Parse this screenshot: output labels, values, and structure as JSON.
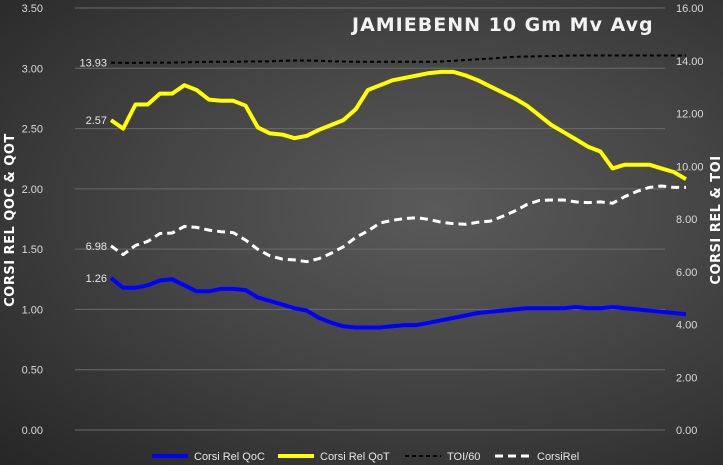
{
  "chart_data": {
    "type": "line",
    "title": "JAMIEBENN 10 Gm Mv Avg",
    "ylabel": "CORSI REL QOC & QOT",
    "y2label": "CORSI REL & TOI",
    "ylim": [
      0,
      3.5
    ],
    "y2lim": [
      0,
      16
    ],
    "yticks": [
      "0.00",
      "0.50",
      "1.00",
      "1.50",
      "2.00",
      "2.50",
      "3.00",
      "3.50"
    ],
    "y2ticks": [
      "0.00",
      "2.00",
      "4.00",
      "6.00",
      "8.00",
      "10.00",
      "12.00",
      "14.00",
      "16.00"
    ],
    "grid": true,
    "legend_position": "bottom",
    "x": [
      1,
      2,
      3,
      4,
      5,
      6,
      7,
      8,
      9,
      10,
      11,
      12,
      13,
      14,
      15,
      16,
      17,
      18,
      19,
      20,
      21,
      22,
      23,
      24,
      25,
      26,
      27,
      28,
      29,
      30,
      31,
      32,
      33,
      34,
      35,
      36,
      37,
      38,
      39,
      40,
      41,
      42,
      43,
      44,
      45,
      46,
      47,
      48
    ],
    "series": [
      {
        "name": "Corsi Rel QoC",
        "axis": "left",
        "color": "#0000ff",
        "style": "solid",
        "start_label": "1.26",
        "values": [
          1.26,
          1.18,
          1.18,
          1.2,
          1.24,
          1.25,
          1.2,
          1.15,
          1.15,
          1.17,
          1.17,
          1.16,
          1.1,
          1.07,
          1.04,
          1.01,
          0.99,
          0.93,
          0.89,
          0.86,
          0.85,
          0.85,
          0.85,
          0.86,
          0.87,
          0.87,
          0.89,
          0.91,
          0.93,
          0.95,
          0.97,
          0.98,
          0.99,
          1.0,
          1.01,
          1.01,
          1.01,
          1.01,
          1.02,
          1.01,
          1.01,
          1.02,
          1.01,
          1.0,
          0.99,
          0.98,
          0.97,
          0.96
        ]
      },
      {
        "name": "Corsi Rel QoT",
        "axis": "left",
        "color": "#ffff00",
        "style": "solid",
        "start_label": "2.57",
        "values": [
          2.57,
          2.5,
          2.7,
          2.7,
          2.79,
          2.79,
          2.86,
          2.82,
          2.74,
          2.73,
          2.73,
          2.69,
          2.51,
          2.46,
          2.45,
          2.42,
          2.44,
          2.49,
          2.53,
          2.57,
          2.66,
          2.82,
          2.86,
          2.9,
          2.92,
          2.94,
          2.96,
          2.97,
          2.97,
          2.94,
          2.9,
          2.85,
          2.8,
          2.75,
          2.69,
          2.61,
          2.53,
          2.47,
          2.41,
          2.35,
          2.31,
          2.17,
          2.2,
          2.2,
          2.2,
          2.17,
          2.14,
          2.08
        ]
      },
      {
        "name": "TOI/60",
        "axis": "right",
        "color": "#000000",
        "style": "dash-small",
        "start_label": "13.93",
        "values": [
          13.93,
          13.92,
          13.92,
          13.93,
          13.93,
          13.93,
          13.94,
          13.95,
          13.96,
          13.96,
          13.96,
          13.97,
          13.97,
          13.98,
          14.0,
          14.01,
          14.01,
          14.0,
          13.98,
          13.97,
          13.96,
          13.96,
          13.96,
          13.96,
          13.96,
          13.96,
          13.96,
          13.97,
          14.0,
          14.03,
          14.06,
          14.08,
          14.12,
          14.15,
          14.16,
          14.17,
          14.18,
          14.19,
          14.2,
          14.2,
          14.2,
          14.2,
          14.2,
          14.2,
          14.2,
          14.2,
          14.2,
          14.2
        ]
      },
      {
        "name": "CorsiRel",
        "axis": "right",
        "color": "#ffffff",
        "style": "dash-large",
        "start_label": "6.98",
        "values": [
          6.98,
          6.65,
          7.0,
          7.15,
          7.45,
          7.47,
          7.72,
          7.68,
          7.58,
          7.52,
          7.48,
          7.2,
          6.85,
          6.6,
          6.48,
          6.45,
          6.38,
          6.5,
          6.7,
          6.95,
          7.3,
          7.55,
          7.85,
          7.95,
          8.02,
          8.05,
          7.98,
          7.88,
          7.82,
          7.8,
          7.88,
          7.92,
          8.1,
          8.3,
          8.55,
          8.7,
          8.72,
          8.72,
          8.65,
          8.62,
          8.65,
          8.6,
          8.85,
          9.05,
          9.2,
          9.25,
          9.2,
          9.2
        ]
      }
    ]
  }
}
